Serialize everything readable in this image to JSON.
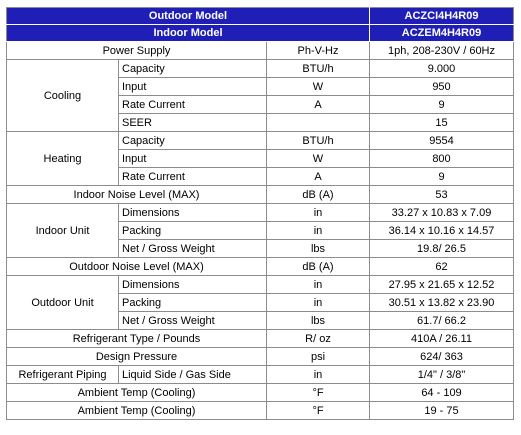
{
  "header": {
    "outdoor_model_label": "Outdoor Model",
    "outdoor_model_value": "ACZCI4H4R09",
    "indoor_model_label": "Indoor Model",
    "indoor_model_value": "ACZEM4H4R09"
  },
  "colors": {
    "header_bg": "#1f1fb8",
    "header_text": "#ffffff",
    "border": "#8c8c8c"
  },
  "rows": {
    "power_supply": {
      "label": "Power Supply",
      "unit": "Ph-V-Hz",
      "value": "1ph, 208-230V / 60Hz"
    },
    "cooling": {
      "label": "Cooling",
      "capacity": {
        "label": "Capacity",
        "unit": "BTU/h",
        "value": "9.000"
      },
      "input": {
        "label": "Input",
        "unit": "W",
        "value": "950"
      },
      "rate_current": {
        "label": "Rate Current",
        "unit": "A",
        "value": "9"
      },
      "seer": {
        "label": "SEER",
        "unit": "",
        "value": "15"
      }
    },
    "heating": {
      "label": "Heating",
      "capacity": {
        "label": "Capacity",
        "unit": "BTU/h",
        "value": "9554"
      },
      "input": {
        "label": "Input",
        "unit": "W",
        "value": "800"
      },
      "rate_current": {
        "label": "Rate Current",
        "unit": "A",
        "value": "9"
      }
    },
    "indoor_noise": {
      "label": "Indoor Noise Level (MAX)",
      "unit": "dB (A)",
      "value": "53"
    },
    "indoor_unit": {
      "label": "Indoor Unit",
      "dimensions": {
        "label": "Dimensions",
        "unit": "in",
        "value": "33.27 x 10.83 x 7.09"
      },
      "packing": {
        "label": "Packing",
        "unit": "in",
        "value": "36.14 x 10.16 x 14.57"
      },
      "weight": {
        "label": "Net / Gross Weight",
        "unit": "lbs",
        "value": "19.8/ 26.5"
      }
    },
    "outdoor_noise": {
      "label": "Outdoor Noise Level (MAX)",
      "unit": "dB (A)",
      "value": "62"
    },
    "outdoor_unit": {
      "label": "Outdoor Unit",
      "dimensions": {
        "label": "Dimensions",
        "unit": "in",
        "value": "27.95 x 21.65 x 12.52"
      },
      "packing": {
        "label": "Packing",
        "unit": "in",
        "value": "30.51 x 13.82 x 23.90"
      },
      "weight": {
        "label": "Net / Gross Weight",
        "unit": "lbs",
        "value": "61.7/ 66.2"
      }
    },
    "refrigerant": {
      "label": "Refrigerant Type / Pounds",
      "unit": "R/ oz",
      "value": "410A / 26.11"
    },
    "design_pressure": {
      "label": "Design Pressure",
      "unit": "psi",
      "value": "624/ 363"
    },
    "refrigerant_piping": {
      "label": "Refrigerant Piping",
      "sub_label": "Liquid Side / Gas Side",
      "unit": "in",
      "value": "1/4\" / 3/8\""
    },
    "ambient_cooling_1": {
      "label": "Ambient Temp (Cooling)",
      "unit": "°F",
      "value": "64 - 109"
    },
    "ambient_cooling_2": {
      "label": "Ambient Temp (Cooling)",
      "unit": "°F",
      "value": "19 - 75"
    }
  }
}
